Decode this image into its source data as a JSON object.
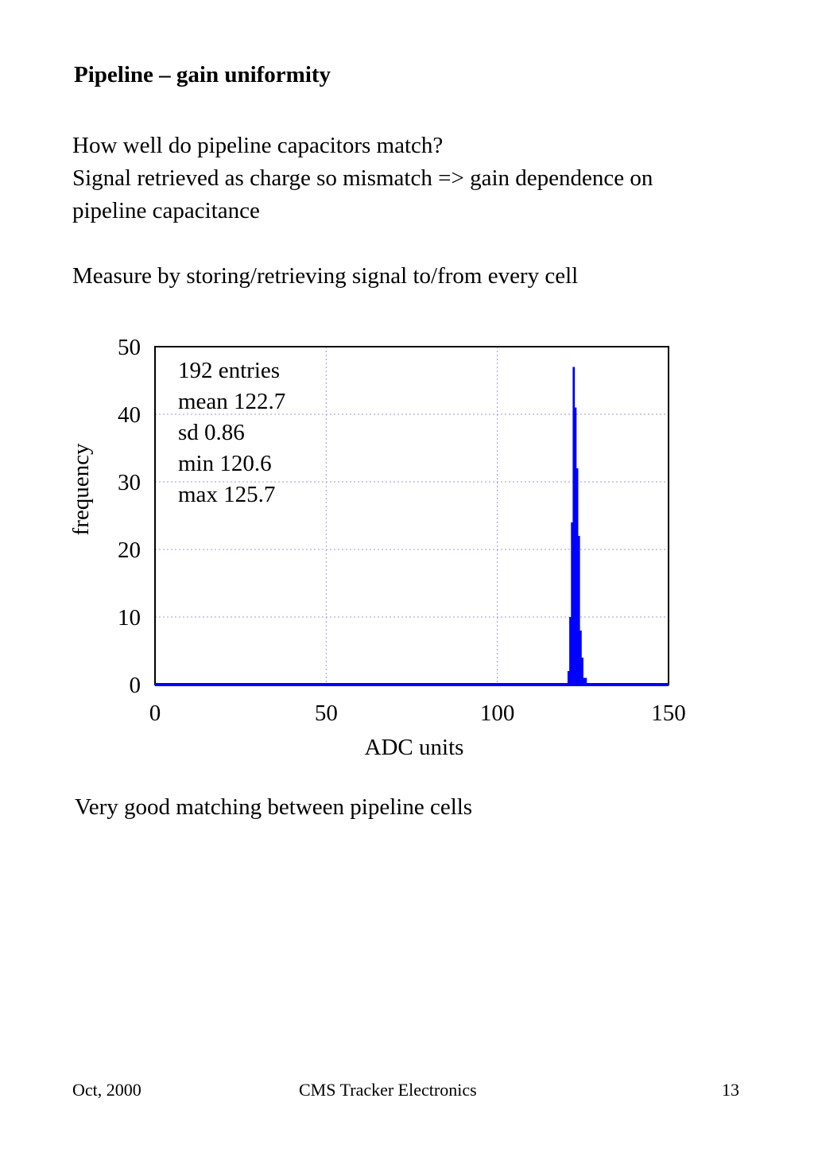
{
  "slide": {
    "title": "Pipeline – gain uniformity",
    "intro_lines": [
      "How well do pipeline capacitors match?",
      "Signal retrieved as charge so mismatch => gain dependence on",
      "pipeline capacitance"
    ],
    "measure_line": "Measure by storing/retrieving signal to/from every cell",
    "conclusion": "Very good matching between pipeline cells"
  },
  "footer": {
    "date": "Oct, 2000",
    "center": "CMS Tracker Electronics",
    "page": "13"
  },
  "chart_data": {
    "type": "bar",
    "xlabel": "ADC units",
    "ylabel": "frequency",
    "xlim": [
      0,
      150
    ],
    "ylim": [
      0,
      50
    ],
    "xticks": [
      0,
      50,
      100,
      150
    ],
    "yticks": [
      0,
      10,
      20,
      30,
      40,
      50
    ],
    "grid": true,
    "bin_width": 0.5,
    "color": "#0000ff",
    "stats": [
      "192 entries",
      "mean 122.7",
      "sd 0.86",
      "min 120.6",
      "max 125.7"
    ],
    "bins": [
      {
        "x": 120.5,
        "y": 2
      },
      {
        "x": 121.0,
        "y": 10
      },
      {
        "x": 121.5,
        "y": 24
      },
      {
        "x": 122.0,
        "y": 47
      },
      {
        "x": 122.5,
        "y": 41
      },
      {
        "x": 123.0,
        "y": 32
      },
      {
        "x": 123.5,
        "y": 22
      },
      {
        "x": 124.0,
        "y": 8
      },
      {
        "x": 124.5,
        "y": 4
      },
      {
        "x": 125.0,
        "y": 1
      },
      {
        "x": 125.5,
        "y": 1
      }
    ]
  }
}
